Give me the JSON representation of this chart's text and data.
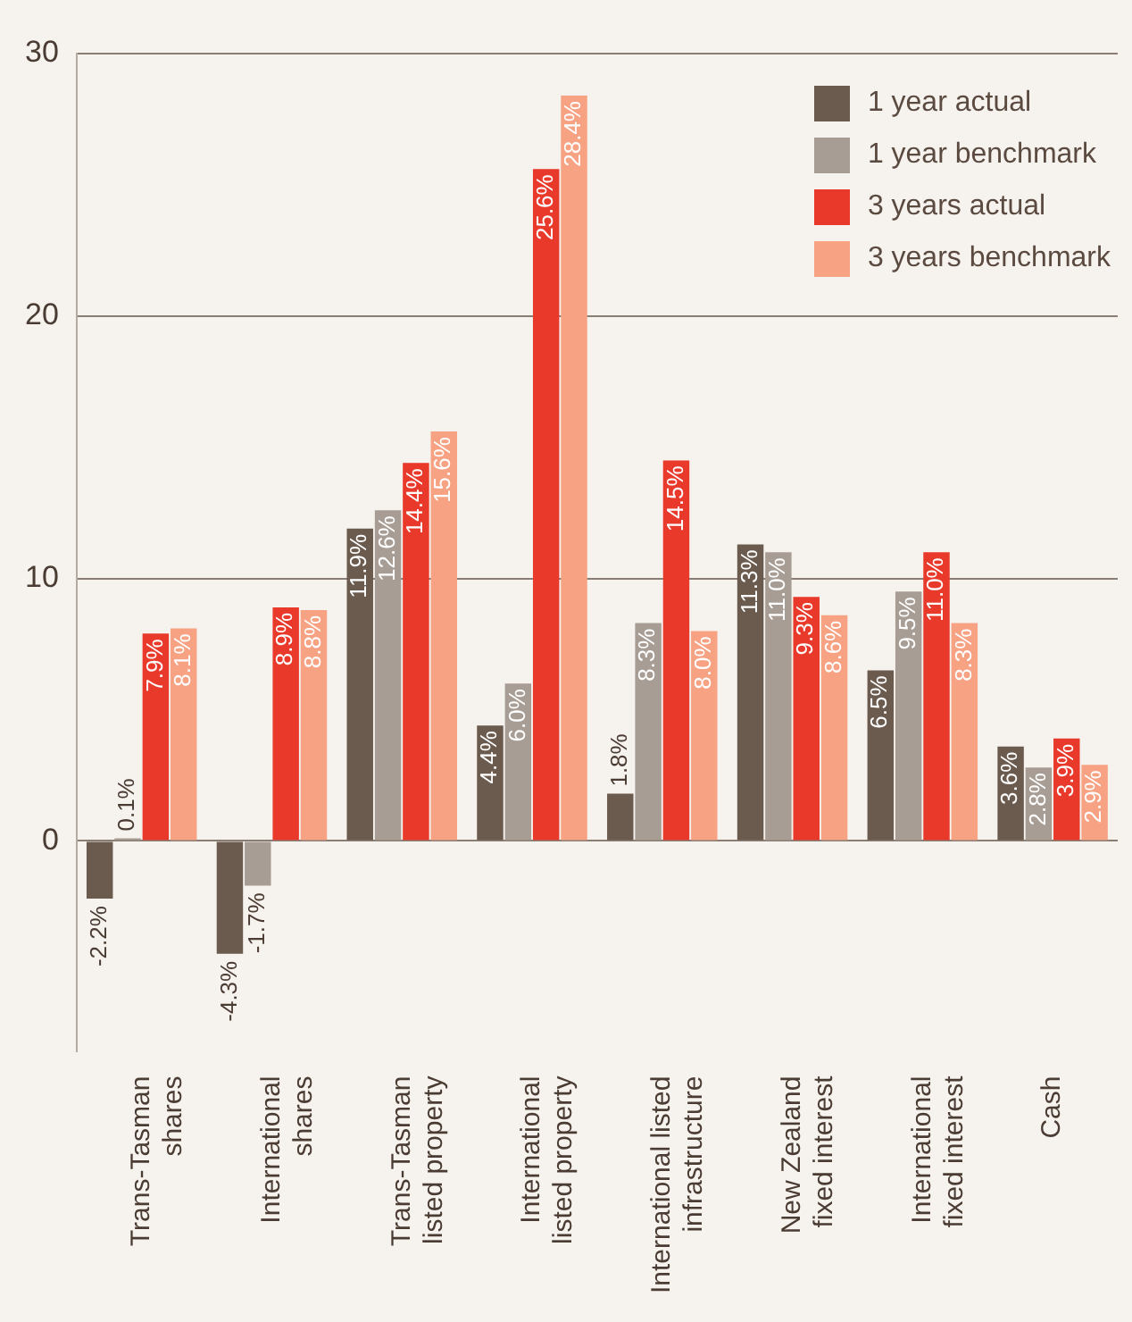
{
  "chart_data": {
    "type": "bar",
    "categories": [
      "Trans-Tasman shares",
      "International shares",
      "Trans-Tasman listed property",
      "International listed property",
      "International listed infrastructure",
      "New Zealand fixed interest",
      "International fixed interest",
      "Cash"
    ],
    "series": [
      {
        "name": "1 year actual",
        "color": "#6b5a4e",
        "values": [
          -2.2,
          -4.3,
          11.9,
          4.4,
          1.8,
          11.3,
          6.5,
          3.6
        ],
        "value_labels": [
          "-2.2%",
          "-4.3%",
          "11.9%",
          "4.4%",
          "1.8%",
          "11.3%",
          "6.5%",
          "3.6%"
        ]
      },
      {
        "name": "1 year benchmark",
        "color": "#a89d94",
        "values": [
          0.1,
          -1.7,
          12.6,
          6.0,
          8.3,
          11.0,
          9.5,
          2.8
        ],
        "value_labels": [
          "0.1%",
          "-1.7%",
          "12.6%",
          "6.0%",
          "8.3%",
          "11.0%",
          "9.5%",
          "2.8%"
        ]
      },
      {
        "name": "3 years actual",
        "color": "#e8392b",
        "values": [
          7.9,
          8.9,
          14.4,
          25.6,
          14.5,
          9.3,
          11.0,
          3.9
        ],
        "value_labels": [
          "7.9%",
          "8.9%",
          "14.4%",
          "25.6%",
          "14.5%",
          "9.3%",
          "11.0%",
          "3.9%"
        ]
      },
      {
        "name": "3 years benchmark",
        "color": "#f7a283",
        "values": [
          8.1,
          8.8,
          15.6,
          28.4,
          8.0,
          8.6,
          8.3,
          2.9
        ],
        "value_labels": [
          "8.1%",
          "8.8%",
          "15.6%",
          "28.4%",
          "8.0%",
          "8.6%",
          "8.3%",
          "2.9%"
        ]
      }
    ],
    "ylim": [
      -8,
      30
    ],
    "yticks": [
      0,
      10,
      20,
      30
    ],
    "grid": "y",
    "legend": "top right"
  }
}
